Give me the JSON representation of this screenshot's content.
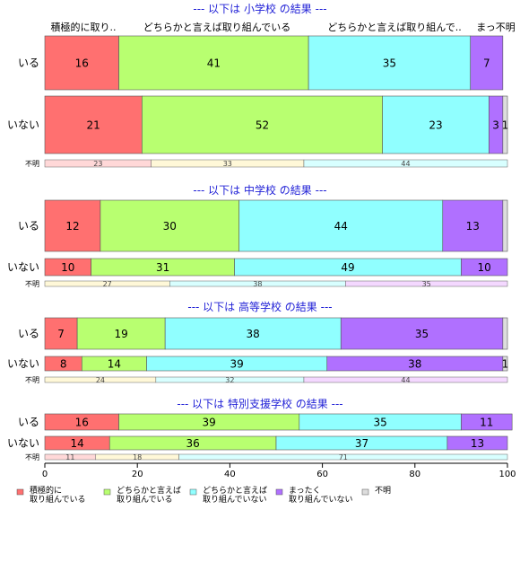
{
  "chart_data": {
    "type": "bar",
    "orientation": "horizontal-stacked-percent",
    "xlim": [
      0,
      100
    ],
    "x_ticks": [
      0,
      20,
      40,
      60,
      80,
      100
    ],
    "top_headers": [
      "積極的に取り..",
      "どちらかと言えば取り組んでいる",
      "どちらかと言えば取り組んで..",
      "まっ不明"
    ],
    "legend": [
      {
        "line1": "積極的に",
        "line2": "取り組んでいる",
        "color": "#ff7070"
      },
      {
        "line1": "どちらかと言えば",
        "line2": "取り組んでいる",
        "color": "#b8ff70"
      },
      {
        "line1": "どちらかと言えば",
        "line2": "取り組んでいない",
        "color": "#90ffff"
      },
      {
        "line1": "まったく",
        "line2": "取り組んでいない",
        "color": "#b070ff"
      },
      {
        "line1": "不明",
        "line2": "",
        "color": "#dddddd"
      }
    ],
    "unknown_colors": [
      "#ffd8d8",
      "#fff8d8",
      "#d8ffff",
      "#f4d8ff"
    ],
    "groups": [
      {
        "title": "--- 以下は 小学校 の結果 ---",
        "rows": [
          {
            "label": "いる",
            "values": [
              16,
              41,
              35,
              7,
              0
            ],
            "value_labels": [
              "16",
              "41",
              "35",
              "7",
              ""
            ]
          },
          {
            "label": "いない",
            "values": [
              21,
              52,
              23,
              3,
              1
            ],
            "value_labels": [
              "21",
              "52",
              "23",
              "3",
              "1"
            ]
          }
        ],
        "unknown": {
          "label": "不明",
          "values": [
            23,
            33,
            44
          ],
          "color_index": [
            0,
            1,
            2
          ]
        }
      },
      {
        "title": "--- 以下は 中学校 の結果 ---",
        "rows": [
          {
            "label": "いる",
            "values": [
              12,
              30,
              44,
              13,
              1
            ],
            "value_labels": [
              "12",
              "30",
              "44",
              "13",
              ""
            ]
          },
          {
            "label": "いない",
            "values": [
              10,
              31,
              49,
              10,
              0
            ],
            "value_labels": [
              "10",
              "31",
              "49",
              "10",
              ""
            ]
          }
        ],
        "unknown": {
          "label": "不明",
          "values": [
            27,
            38,
            35
          ],
          "color_index": [
            1,
            2,
            3
          ]
        }
      },
      {
        "title": "--- 以下は 高等学校 の結果 ---",
        "rows": [
          {
            "label": "いる",
            "values": [
              7,
              19,
              38,
              35,
              1
            ],
            "value_labels": [
              "7",
              "19",
              "38",
              "35",
              ""
            ]
          },
          {
            "label": "いない",
            "values": [
              8,
              14,
              39,
              38,
              1
            ],
            "value_labels": [
              "8",
              "14",
              "39",
              "38",
              "1"
            ]
          }
        ],
        "unknown": {
          "label": "不明",
          "values": [
            24,
            32,
            44
          ],
          "color_index": [
            1,
            2,
            3
          ]
        }
      },
      {
        "title": "--- 以下は 特別支援学校 の結果 ---",
        "rows": [
          {
            "label": "いる",
            "values": [
              16,
              39,
              35,
              11,
              0
            ],
            "value_labels": [
              "16",
              "39",
              "35",
              "11",
              ""
            ]
          },
          {
            "label": "いない",
            "values": [
              14,
              36,
              37,
              13,
              0
            ],
            "value_labels": [
              "14",
              "36",
              "37",
              "13",
              ""
            ]
          }
        ],
        "unknown": {
          "label": "不明",
          "values": [
            11,
            18,
            71
          ],
          "color_index": [
            0,
            1,
            2
          ]
        }
      }
    ]
  }
}
